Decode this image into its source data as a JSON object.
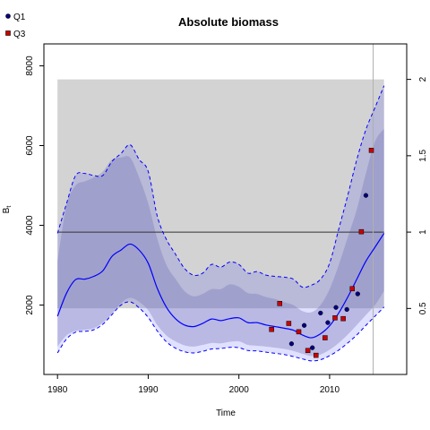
{
  "chart_data": {
    "type": "line",
    "title": "Absolute biomass",
    "xlabel": "Time",
    "ylabel": "B",
    "ylabel_subscript": "t",
    "xlim": [
      1978.5,
      2018.5
    ],
    "ylim": [
      260,
      8550
    ],
    "xticks": [
      "1980",
      "1990",
      "2000",
      "2010"
    ],
    "xtick_values": [
      1980,
      1990,
      2000,
      2010
    ],
    "yticks": [
      "2000",
      "4000",
      "6000",
      "8000"
    ],
    "ytick_values": [
      2000,
      4000,
      6000,
      8000
    ],
    "y2_ratio_per_unit": 3830,
    "y2ticks": [
      "0.5",
      "1",
      "1.5",
      "2"
    ],
    "y2tick_values": [
      0.5,
      1,
      1.5,
      2
    ],
    "bmsy": 3830,
    "bmsy_band": [
      1920,
      7660
    ],
    "band_x_range": [
      1980,
      2016
    ],
    "vline_x": 2014.8,
    "colors": {
      "median": "#0000ff",
      "outer_ci": "#ccccff",
      "inner_ci": "#b8b8dd",
      "band": "#d3d3d3",
      "q1": "#000080",
      "q3": "#cc0000"
    },
    "x": [
      1980,
      1981,
      1982,
      1983,
      1984,
      1985,
      1986,
      1987,
      1988,
      1989,
      1990,
      1991,
      1992,
      1993,
      1994,
      1995,
      1996,
      1997,
      1998,
      1999,
      2000,
      2001,
      2002,
      2003,
      2004,
      2005,
      2006,
      2007,
      2008,
      2009,
      2010,
      2011,
      2012,
      2013,
      2014,
      2015,
      2016
    ],
    "series": [
      {
        "name": "median",
        "values": [
          1720,
          2300,
          2640,
          2650,
          2720,
          2860,
          3220,
          3380,
          3530,
          3380,
          3050,
          2420,
          1950,
          1660,
          1500,
          1460,
          1540,
          1650,
          1610,
          1660,
          1680,
          1560,
          1560,
          1500,
          1460,
          1420,
          1370,
          1250,
          1180,
          1280,
          1480,
          1800,
          2200,
          2650,
          3100,
          3450,
          3800
        ]
      },
      {
        "name": "lower_dashed",
        "values": [
          800,
          1150,
          1320,
          1340,
          1380,
          1520,
          1760,
          2000,
          2080,
          1930,
          1690,
          1350,
          1080,
          920,
          830,
          800,
          840,
          900,
          910,
          940,
          930,
          860,
          850,
          820,
          790,
          760,
          710,
          650,
          600,
          630,
          730,
          870,
          1050,
          1250,
          1490,
          1720,
          1950
        ]
      },
      {
        "name": "upper_dashed",
        "values": [
          3800,
          4550,
          5250,
          5300,
          5250,
          5250,
          5600,
          5800,
          6020,
          5650,
          5350,
          4230,
          3650,
          3280,
          2920,
          2750,
          2800,
          3020,
          2950,
          3080,
          3020,
          2800,
          2840,
          2750,
          2720,
          2700,
          2650,
          2450,
          2500,
          2650,
          3050,
          3900,
          4750,
          5650,
          6400,
          6950,
          7500
        ]
      },
      {
        "name": "lower_band",
        "values": [
          960,
          1240,
          1350,
          1380,
          1420,
          1560,
          1780,
          2050,
          2180,
          2080,
          1870,
          1500,
          1240,
          1090,
          990,
          960,
          1000,
          1050,
          1040,
          1080,
          1090,
          1000,
          980,
          960,
          930,
          900,
          850,
          780,
          720,
          760,
          880,
          1050,
          1260,
          1500,
          1750,
          2000,
          2350
        ]
      },
      {
        "name": "upper_band",
        "values": [
          3100,
          4500,
          5000,
          5100,
          5200,
          5350,
          5650,
          5700,
          5700,
          5200,
          4550,
          3660,
          3010,
          2660,
          2350,
          2220,
          2280,
          2400,
          2400,
          2520,
          2460,
          2300,
          2280,
          2200,
          2150,
          2070,
          2000,
          1850,
          1820,
          2000,
          2400,
          3000,
          3700,
          4400,
          5300,
          6100,
          6420
        ]
      }
    ],
    "points_q1": {
      "name": "Q1",
      "x": [
        2005.8,
        2006.6,
        2007.2,
        2008.1,
        2009.0,
        2009.8,
        2010.7,
        2011.9,
        2013.1,
        2014.0
      ],
      "y": [
        1030,
        1330,
        1490,
        930,
        1800,
        1560,
        1940,
        1890,
        2280,
        4750
      ]
    },
    "points_q3": {
      "name": "Q3",
      "x": [
        2003.6,
        2004.5,
        2005.5,
        2006.6,
        2007.6,
        2008.5,
        2009.5,
        2010.6,
        2011.5,
        2012.5,
        2013.5,
        2014.6
      ],
      "y": [
        1390,
        2040,
        1540,
        1330,
        860,
        740,
        1180,
        1680,
        1660,
        2410,
        3840,
        5880
      ]
    },
    "legend_position": "top-left",
    "grid": false
  }
}
